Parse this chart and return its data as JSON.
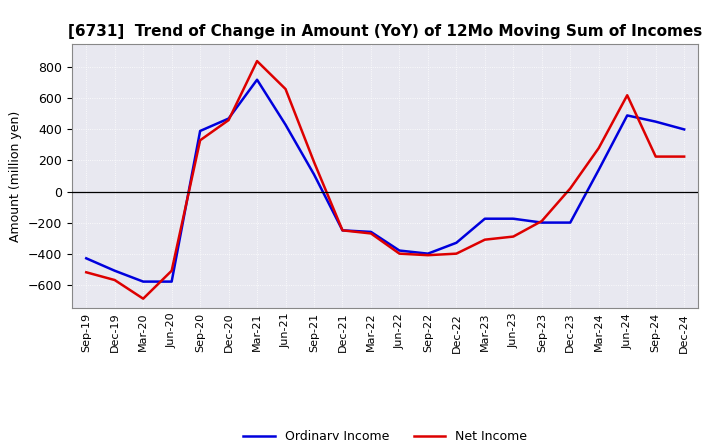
{
  "title": "[6731]  Trend of Change in Amount (YoY) of 12Mo Moving Sum of Incomes",
  "ylabel": "Amount (million yen)",
  "x_labels": [
    "Sep-19",
    "Dec-19",
    "Mar-20",
    "Jun-20",
    "Sep-20",
    "Dec-20",
    "Mar-21",
    "Jun-21",
    "Sep-21",
    "Dec-21",
    "Mar-22",
    "Jun-22",
    "Sep-22",
    "Dec-22",
    "Mar-23",
    "Jun-23",
    "Sep-23",
    "Dec-23",
    "Mar-24",
    "Jun-24",
    "Sep-24",
    "Dec-24"
  ],
  "ordinary_income": [
    -430,
    -510,
    -580,
    -580,
    390,
    470,
    720,
    430,
    110,
    -250,
    -260,
    -380,
    -400,
    -330,
    -175,
    -175,
    -200,
    -200,
    140,
    490,
    450,
    400
  ],
  "net_income": [
    -520,
    -570,
    -690,
    -510,
    330,
    460,
    840,
    660,
    190,
    -250,
    -270,
    -400,
    -410,
    -400,
    -310,
    -290,
    -190,
    20,
    280,
    620,
    225,
    225
  ],
  "ordinary_color": "#0000dd",
  "net_color": "#dd0000",
  "ylim_min": -750,
  "ylim_max": 950,
  "yticks": [
    -600,
    -400,
    -200,
    0,
    200,
    400,
    600,
    800
  ],
  "background_color": "#ffffff",
  "plot_bg_color": "#e8e8f0",
  "grid_color": "#ffffff",
  "title_fontsize": 11,
  "axis_fontsize": 9,
  "tick_fontsize": 8,
  "legend_fontsize": 9
}
